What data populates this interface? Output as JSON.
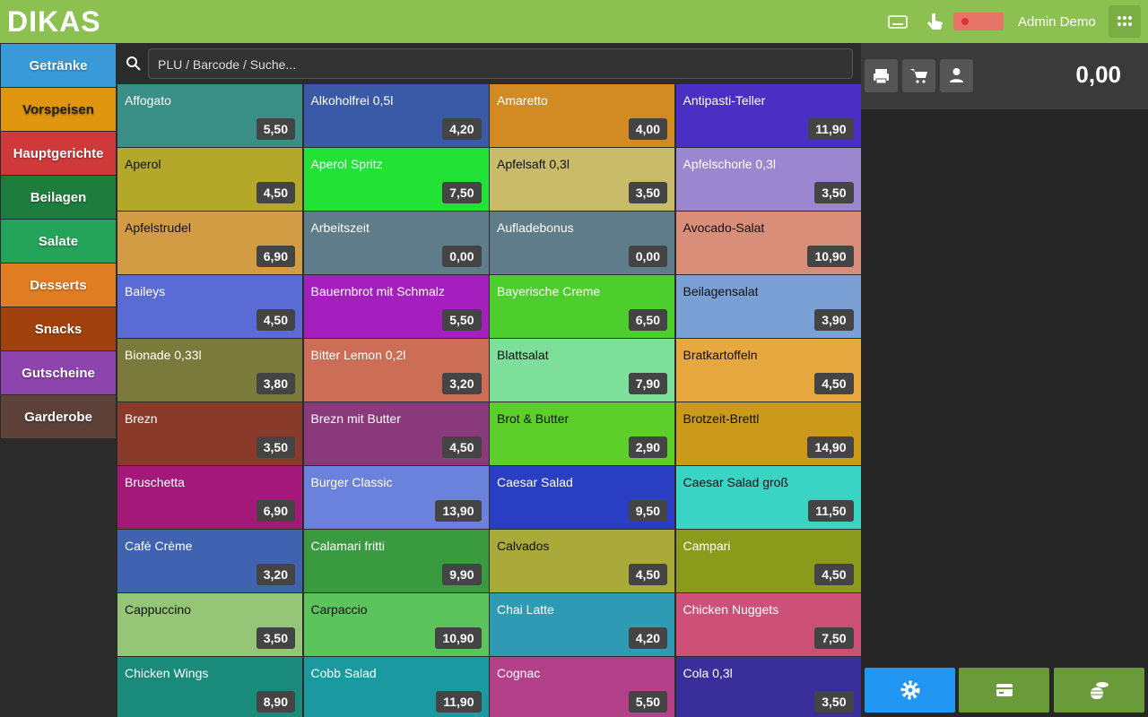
{
  "header": {
    "logo": "DIKAS",
    "user": "Admin Demo"
  },
  "search": {
    "placeholder": "PLU / Barcode / Suche..."
  },
  "categories": [
    {
      "label": "Getränke",
      "color": "#3a9ad9"
    },
    {
      "label": "Vorspeisen",
      "color": "#e0960e"
    },
    {
      "label": "Hauptgerichte",
      "color": "#d0393a"
    },
    {
      "label": "Beilagen",
      "color": "#1e7d3c"
    },
    {
      "label": "Salate",
      "color": "#24a35a"
    },
    {
      "label": "Desserts",
      "color": "#e07c22"
    },
    {
      "label": "Snacks",
      "color": "#a0410d"
    },
    {
      "label": "Gutscheine",
      "color": "#8e44ad"
    },
    {
      "label": "Garderobe",
      "color": "#5d4037"
    }
  ],
  "products": [
    {
      "name": "Affogato",
      "price": "5,50",
      "color": "#3a8f87"
    },
    {
      "name": "Alkoholfrei 0,5l",
      "price": "4,20",
      "color": "#3a5aa8"
    },
    {
      "name": "Amaretto",
      "price": "4,00",
      "color": "#d28a22"
    },
    {
      "name": "Antipasti-Teller",
      "price": "11,90",
      "color": "#4a2fc4"
    },
    {
      "name": "Aperol",
      "price": "4,50",
      "color": "#b3a82a"
    },
    {
      "name": "Aperol Spritz",
      "price": "7,50",
      "color": "#22e236"
    },
    {
      "name": "Apfelsaft 0,3l",
      "price": "3,50",
      "color": "#c8bb6a"
    },
    {
      "name": "Apfelschorle 0,3l",
      "price": "3,50",
      "color": "#9b86d0"
    },
    {
      "name": "Apfelstrudel",
      "price": "6,90",
      "color": "#d29c45"
    },
    {
      "name": "Arbeitszeit",
      "price": "0,00",
      "color": "#5f7c8a"
    },
    {
      "name": "Aufladebonus",
      "price": "0,00",
      "color": "#5f7c8a"
    },
    {
      "name": "Avocado-Salat",
      "price": "10,90",
      "color": "#d98e7a"
    },
    {
      "name": "Baileys",
      "price": "4,50",
      "color": "#5a6bd6"
    },
    {
      "name": "Bauernbrot mit Schmalz",
      "price": "5,50",
      "color": "#a41fbd"
    },
    {
      "name": "Bayerische Creme",
      "price": "6,50",
      "color": "#4cce2c"
    },
    {
      "name": "Beilagensalat",
      "price": "3,90",
      "color": "#7aa0d6"
    },
    {
      "name": "Bionade 0,33l",
      "price": "3,80",
      "color": "#7a7a3a"
    },
    {
      "name": "Bitter Lemon 0,2l",
      "price": "3,20",
      "color": "#cc6e55"
    },
    {
      "name": "Blattsalat",
      "price": "7,90",
      "color": "#7edf9a"
    },
    {
      "name": "Bratkartoffeln",
      "price": "4,50",
      "color": "#e8a840"
    },
    {
      "name": "Brezn",
      "price": "3,50",
      "color": "#8a3a2a"
    },
    {
      "name": "Brezn mit Butter",
      "price": "4,50",
      "color": "#8a3a7a"
    },
    {
      "name": "Brot & Butter",
      "price": "2,90",
      "color": "#5ccf2a"
    },
    {
      "name": "Brotzeit-Brettl",
      "price": "14,90",
      "color": "#cc9a1a"
    },
    {
      "name": "Bruschetta",
      "price": "6,90",
      "color": "#a4187a"
    },
    {
      "name": "Burger Classic",
      "price": "13,90",
      "color": "#6a82dc"
    },
    {
      "name": "Caesar Salad",
      "price": "9,50",
      "color": "#2a3ec4"
    },
    {
      "name": "Caesar Salad groß",
      "price": "11,50",
      "color": "#3ad4c4"
    },
    {
      "name": "Café Crème",
      "price": "3,20",
      "color": "#3f63b0"
    },
    {
      "name": "Calamari fritti",
      "price": "9,90",
      "color": "#3a9a40"
    },
    {
      "name": "Calvados",
      "price": "4,50",
      "color": "#aaaa3a"
    },
    {
      "name": "Campari",
      "price": "4,50",
      "color": "#8a9a1a"
    },
    {
      "name": "Cappuccino",
      "price": "3,50",
      "color": "#95c576"
    },
    {
      "name": "Carpaccio",
      "price": "10,90",
      "color": "#5cc45c"
    },
    {
      "name": "Chai Latte",
      "price": "4,20",
      "color": "#2e9ab4"
    },
    {
      "name": "Chicken Nuggets",
      "price": "7,50",
      "color": "#cc5078"
    },
    {
      "name": "Chicken Wings",
      "price": "8,90",
      "color": "#1a8a7a"
    },
    {
      "name": "Cobb Salad",
      "price": "11,90",
      "color": "#1a9aa0"
    },
    {
      "name": "Cognac",
      "price": "5,50",
      "color": "#b4408a"
    },
    {
      "name": "Cola 0,3l",
      "price": "3,50",
      "color": "#3a2f9a"
    }
  ],
  "cart": {
    "total": "0,00"
  }
}
